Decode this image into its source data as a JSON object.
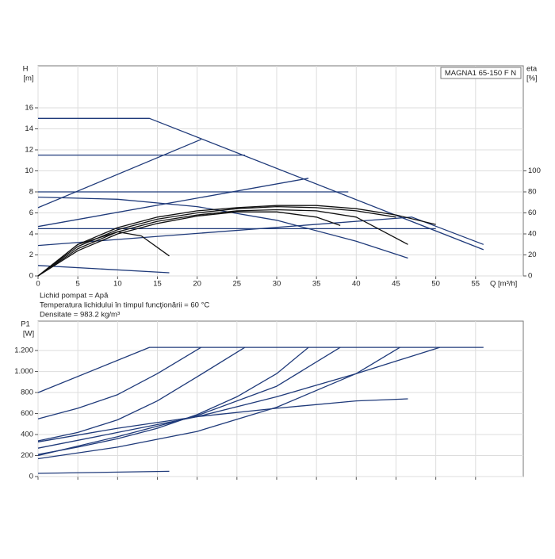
{
  "chart_data": [
    {
      "type": "line",
      "title": "MAGNA1 65-150 F N",
      "y_label": "H",
      "y_unit": "[m]",
      "y2_label": "eta",
      "y2_unit": "[%]",
      "x_label": "Q [m³/h]",
      "annotations": [
        "Lichid pompat = Apă",
        "Temperatura lichidului în timpul funcţionării = 60 °C",
        "Densitate = 983.2 kg/m³"
      ],
      "xlim": [
        0,
        61
      ],
      "xticks": [
        0,
        5,
        10,
        15,
        20,
        25,
        30,
        35,
        40,
        45,
        50,
        55
      ],
      "ylim": [
        0,
        20
      ],
      "yticks": [
        0,
        2,
        4,
        6,
        8,
        10,
        12,
        14,
        16
      ],
      "y2lim": [
        0,
        200
      ],
      "y2ticks": [
        0,
        20,
        40,
        60,
        80,
        100
      ],
      "grid": true,
      "show_xtick_labels": true,
      "series": [
        {
          "color": "#1f3a7a",
          "x": [
            0,
            14,
            56
          ],
          "values": [
            15,
            15,
            2.5
          ]
        },
        {
          "color": "#1f3a7a",
          "x": [
            0,
            26
          ],
          "values": [
            11.5,
            11.5
          ]
        },
        {
          "color": "#1f3a7a",
          "x": [
            0,
            39
          ],
          "values": [
            8,
            8
          ]
        },
        {
          "color": "#1f3a7a",
          "x": [
            0,
            50
          ],
          "values": [
            4.5,
            4.5
          ]
        },
        {
          "color": "#1f3a7a",
          "x": [
            0,
            20.5
          ],
          "values": [
            6.5,
            13
          ]
        },
        {
          "color": "#1f3a7a",
          "x": [
            0,
            34
          ],
          "values": [
            4.7,
            9.3
          ]
        },
        {
          "color": "#1f3a7a",
          "x": [
            0,
            47,
            56
          ],
          "values": [
            2.9,
            5.6,
            3
          ]
        },
        {
          "color": "#1f3a7a",
          "x": [
            0,
            10,
            20,
            30,
            40,
            46.5
          ],
          "values": [
            7.5,
            7.3,
            6.6,
            5.3,
            3.3,
            1.7
          ]
        },
        {
          "color": "#1f3a7a",
          "x": [
            0,
            16.5
          ],
          "values": [
            1,
            0.3
          ]
        },
        {
          "color": "#111111",
          "axis": "y2",
          "x": [
            0,
            5,
            10,
            15,
            20,
            25,
            30,
            35,
            40,
            45,
            50
          ],
          "values": [
            0,
            30,
            46,
            56,
            62,
            65,
            67,
            67,
            64,
            58,
            49
          ]
        },
        {
          "color": "#111111",
          "axis": "y2",
          "x": [
            0,
            5,
            10,
            15,
            20,
            25,
            30,
            35,
            40,
            46.5
          ],
          "values": [
            0,
            26,
            42,
            52,
            58,
            62,
            63,
            62,
            56,
            30
          ]
        },
        {
          "color": "#111111",
          "axis": "y2",
          "x": [
            0,
            5,
            10,
            15,
            20,
            25,
            30,
            35,
            38
          ],
          "values": [
            0,
            24,
            40,
            50,
            57,
            61,
            61,
            56,
            48
          ]
        },
        {
          "color": "#111111",
          "axis": "y2",
          "x": [
            0,
            5,
            10,
            15,
            20,
            25,
            30,
            35,
            40,
            45
          ],
          "values": [
            0,
            28,
            44,
            54,
            60,
            64,
            66,
            65,
            62,
            56
          ]
        },
        {
          "color": "#111111",
          "axis": "y2",
          "x": [
            0,
            5,
            10,
            13,
            16.5
          ],
          "values": [
            0,
            30,
            42,
            38,
            19
          ]
        }
      ]
    },
    {
      "type": "line",
      "y_label": "P1",
      "y_unit": "[W]",
      "xlim": [
        0,
        61
      ],
      "xticks": [
        0,
        5,
        10,
        15,
        20,
        25,
        30,
        35,
        40,
        45,
        50,
        55
      ],
      "ylim": [
        0,
        1480
      ],
      "yticks": [
        0,
        200,
        400,
        600,
        800,
        {
          "value": 1000,
          "label": "1.000"
        },
        {
          "value": 1200,
          "label": "1.200"
        }
      ],
      "grid": true,
      "show_xtick_labels": false,
      "series": [
        {
          "color": "#1f3a7a",
          "x": [
            0,
            14,
            56
          ],
          "values": [
            800,
            1230,
            1230
          ]
        },
        {
          "color": "#1f3a7a",
          "x": [
            0,
            5,
            10,
            15,
            20.5
          ],
          "values": [
            550,
            650,
            780,
            980,
            1230
          ]
        },
        {
          "color": "#1f3a7a",
          "x": [
            0,
            5,
            10,
            15,
            20,
            26
          ],
          "values": [
            340,
            420,
            540,
            720,
            950,
            1230
          ]
        },
        {
          "color": "#1f3a7a",
          "x": [
            0,
            5,
            10,
            15,
            20,
            25,
            30,
            34
          ],
          "values": [
            210,
            280,
            360,
            460,
            590,
            760,
            980,
            1230
          ]
        },
        {
          "color": "#1f3a7a",
          "x": [
            0,
            10,
            20,
            30,
            38
          ],
          "values": [
            200,
            380,
            580,
            860,
            1230
          ]
        },
        {
          "color": "#1f3a7a",
          "x": [
            0,
            10,
            20,
            30,
            40,
            45.5
          ],
          "values": [
            170,
            280,
            430,
            660,
            980,
            1230
          ]
        },
        {
          "color": "#1f3a7a",
          "x": [
            0,
            10,
            20,
            30,
            40,
            50.5
          ],
          "values": [
            270,
            420,
            570,
            760,
            980,
            1230
          ]
        },
        {
          "color": "#1f3a7a",
          "x": [
            0,
            10,
            20,
            30,
            40,
            46.5
          ],
          "values": [
            330,
            460,
            570,
            650,
            720,
            740
          ]
        },
        {
          "color": "#1f3a7a",
          "x": [
            0,
            16.5
          ],
          "values": [
            30,
            50
          ]
        }
      ]
    }
  ]
}
